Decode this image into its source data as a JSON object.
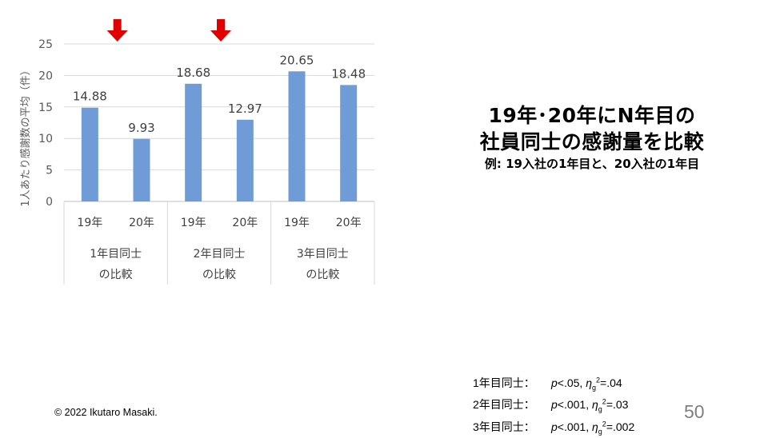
{
  "chart_data": {
    "type": "bar",
    "ylabel": "1人あたり感謝数の平均（件）",
    "ylim": [
      0,
      25
    ],
    "yticks": [
      0,
      5,
      10,
      15,
      20,
      25
    ],
    "groups": [
      {
        "label_line1": "1年目同士",
        "label_line2": "の比較",
        "highlighted": true,
        "bars": [
          {
            "category": "19年",
            "value": 14.88,
            "label": "14.88"
          },
          {
            "category": "20年",
            "value": 9.93,
            "label": "9.93"
          }
        ]
      },
      {
        "label_line1": "2年目同士",
        "label_line2": "の比較",
        "highlighted": true,
        "bars": [
          {
            "category": "19年",
            "value": 18.68,
            "label": "18.68"
          },
          {
            "category": "20年",
            "value": 12.97,
            "label": "12.97"
          }
        ]
      },
      {
        "label_line1": "3年目同士",
        "label_line2": "の比較",
        "highlighted": false,
        "bars": [
          {
            "category": "19年",
            "value": 20.65,
            "label": "20.65"
          },
          {
            "category": "20年",
            "value": 18.48,
            "label": "18.48"
          }
        ]
      }
    ],
    "bar_color": "#6f9bd6",
    "arrow_color": "#e00000",
    "grid": true
  },
  "title": {
    "line1": "19年･20年にN年目の",
    "line2": "社員同士の感謝量を比較",
    "subtitle": "例: 19入社の1年目と、20入社の1年目"
  },
  "stats": [
    {
      "label": "1年目同士：",
      "p": "p",
      "p_rest": "<.05, ",
      "eta": "η",
      "sub": "g",
      "sup": "2",
      "eta_rest": "=.04"
    },
    {
      "label": "2年目同士：",
      "p": "p",
      "p_rest": "<.001, ",
      "eta": "η",
      "sub": "g",
      "sup": "2",
      "eta_rest": "=.03"
    },
    {
      "label": "3年目同士：",
      "p": "p",
      "p_rest": "<.001, ",
      "eta": "η",
      "sub": "g",
      "sup": "2",
      "eta_rest": "=.002"
    }
  ],
  "footer": {
    "copyright": "© 2022 Ikutaro Masaki.",
    "page_number": "50"
  }
}
